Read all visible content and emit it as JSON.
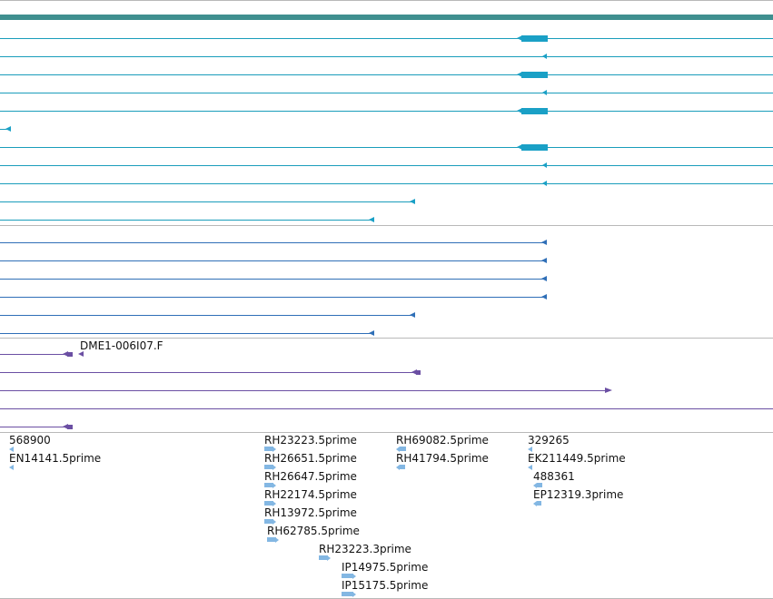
{
  "colors": {
    "header_band": "#3f8f8f",
    "track1": "#1a9dbb",
    "track1_thick": "#1aa0c6",
    "track2": "#2f6fb7",
    "track3": "#6b4fa3",
    "est": "#83b7e3",
    "divider": "#b9b9b9"
  },
  "tracks": {
    "track3": {
      "feature_label": "DME1-006I07.F"
    },
    "ests": [
      {
        "label": "568900"
      },
      {
        "label": "EN14141.5prime"
      },
      {
        "label": "RH23223.5prime"
      },
      {
        "label": "RH26651.5prime"
      },
      {
        "label": "RH26647.5prime"
      },
      {
        "label": "RH22174.5prime"
      },
      {
        "label": "RH13972.5prime"
      },
      {
        "label": "RH62785.5prime"
      },
      {
        "label": "RH23223.3prime"
      },
      {
        "label": "IP14975.5prime"
      },
      {
        "label": "IP15175.5prime"
      },
      {
        "label": "RH69082.5prime"
      },
      {
        "label": "RH41794.5prime"
      },
      {
        "label": "329265"
      },
      {
        "label": "EK211449.5prime"
      },
      {
        "label": "488361"
      },
      {
        "label": "EP12319.3prime"
      }
    ]
  }
}
